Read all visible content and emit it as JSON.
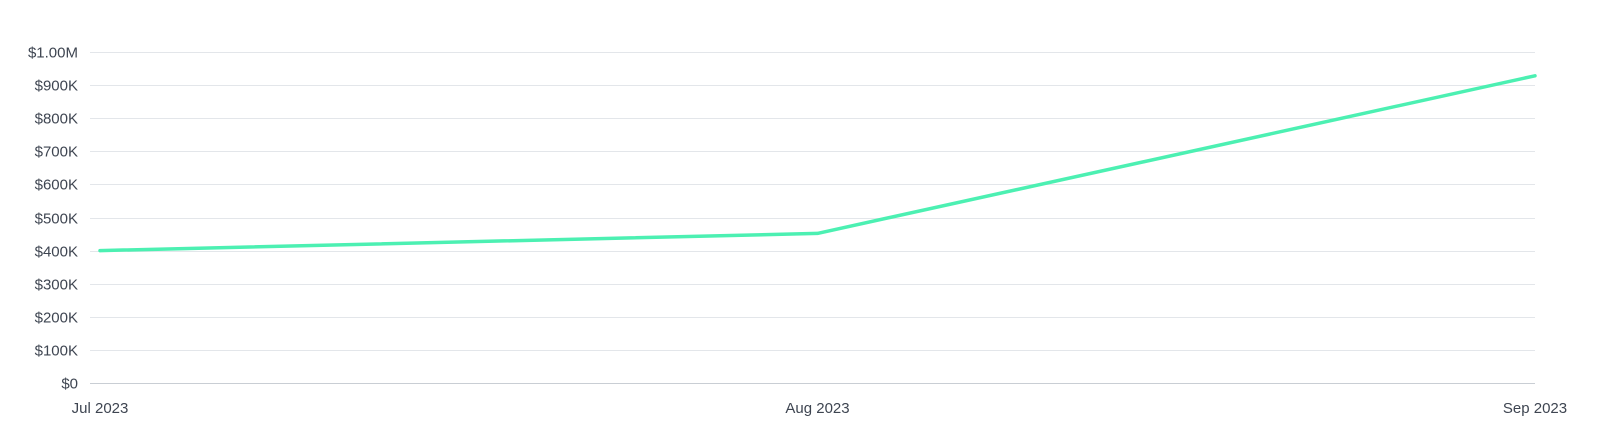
{
  "colors": {
    "series": "#4cf0b2",
    "grid": "#e3e6ea",
    "text": "#3e4551"
  },
  "chart_data": {
    "type": "line",
    "title": "",
    "xlabel": "",
    "ylabel": "",
    "categories": [
      "Jul 2023",
      "Aug 2023",
      "Sep 2023"
    ],
    "series": [
      {
        "values": [
          400000,
          452000,
          928000
        ]
      }
    ],
    "ylim": [
      0,
      1000000
    ],
    "y_ticks": [
      {
        "value": 0,
        "label": "$0"
      },
      {
        "value": 100000,
        "label": "$100K"
      },
      {
        "value": 200000,
        "label": "$200K"
      },
      {
        "value": 300000,
        "label": "$300K"
      },
      {
        "value": 400000,
        "label": "$400K"
      },
      {
        "value": 500000,
        "label": "$500K"
      },
      {
        "value": 600000,
        "label": "$600K"
      },
      {
        "value": 700000,
        "label": "$700K"
      },
      {
        "value": 800000,
        "label": "$800K"
      },
      {
        "value": 900000,
        "label": "$900K"
      },
      {
        "value": 1000000,
        "label": "$1.00M"
      }
    ],
    "grid": true,
    "legend": "none"
  }
}
